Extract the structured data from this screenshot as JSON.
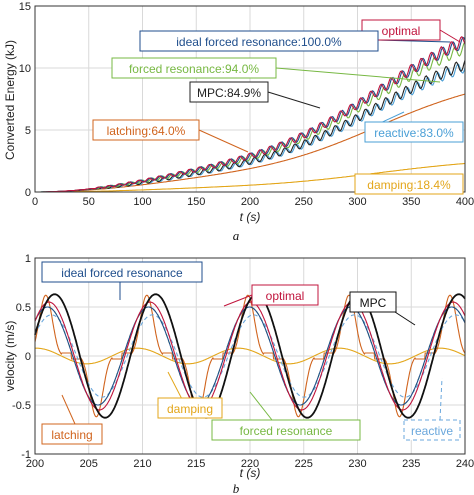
{
  "chart_data": [
    {
      "type": "line",
      "panel_label": "a",
      "xlabel": "t (s)",
      "ylabel": "Converted Energy (kJ)",
      "xlim": [
        0,
        400
      ],
      "ylim": [
        0,
        15
      ],
      "xticks": [
        0,
        50,
        100,
        150,
        200,
        250,
        300,
        350,
        400
      ],
      "yticks": [
        0,
        5,
        10,
        15
      ],
      "grid": true,
      "series": [
        {
          "name": "optimal",
          "color": "#c0143c",
          "final_value": 12.2,
          "oscillating": true
        },
        {
          "name": "ideal forced resonance",
          "color": "#1f4e8c",
          "final_value": 12.1,
          "oscillating": true
        },
        {
          "name": "forced resonance",
          "color": "#77b843",
          "final_value": 11.6,
          "oscillating": true
        },
        {
          "name": "MPC",
          "color": "#222222",
          "final_value": 10.3,
          "oscillating": true
        },
        {
          "name": "reactive",
          "color": "#4a9fd6",
          "final_value": 10.1,
          "oscillating": true
        },
        {
          "name": "latching",
          "color": "#d0641e",
          "final_value": 7.9,
          "oscillating": false
        },
        {
          "name": "damping",
          "color": "#e3a61a",
          "final_value": 2.3,
          "oscillating": false
        }
      ],
      "annotations": [
        {
          "text": "optimal",
          "color": "#c0143c"
        },
        {
          "text": "ideal forced resonance:100.0%",
          "color": "#1f4e8c"
        },
        {
          "text": "forced resonance:94.0%",
          "color": "#77b843"
        },
        {
          "text": "MPC:84.9%",
          "color": "#222222"
        },
        {
          "text": "latching:64.0%",
          "color": "#d0641e"
        },
        {
          "text": "reactive:83.0%",
          "color": "#4a9fd6"
        },
        {
          "text": "damping:18.4%",
          "color": "#e3a61a"
        }
      ]
    },
    {
      "type": "line",
      "panel_label": "b",
      "xlabel": "t (s)",
      "ylabel": "velocity (m/s)",
      "xlim": [
        200,
        240
      ],
      "ylim": [
        -1,
        1
      ],
      "xticks": [
        200,
        205,
        210,
        215,
        220,
        225,
        230,
        235,
        240
      ],
      "yticks": [
        -1,
        -0.5,
        0,
        0.5,
        1
      ],
      "grid": true,
      "series": [
        {
          "name": "MPC",
          "color": "#111111",
          "amplitude": 0.63,
          "period_s": 9.4
        },
        {
          "name": "optimal",
          "color": "#c0143c",
          "amplitude": 0.55,
          "period_s": 9.4
        },
        {
          "name": "ideal forced resonance",
          "color": "#1f4e8c",
          "amplitude": 0.5,
          "period_s": 9.4
        },
        {
          "name": "forced resonance",
          "color": "#77b843",
          "amplitude": 0.5,
          "period_s": 9.4
        },
        {
          "name": "reactive",
          "color": "#6aa7dc",
          "amplitude": 0.42,
          "period_s": 9.4
        },
        {
          "name": "latching",
          "color": "#d0641e",
          "amplitude": 0.62,
          "period_s": 9.4
        },
        {
          "name": "damping",
          "color": "#e3a61a",
          "amplitude": 0.08,
          "period_s": 9.4
        }
      ],
      "annotations": [
        {
          "text": "ideal forced resonance",
          "color": "#1f4e8c"
        },
        {
          "text": "optimal",
          "color": "#c0143c"
        },
        {
          "text": "MPC",
          "color": "#111111"
        },
        {
          "text": "damping",
          "color": "#e3a61a"
        },
        {
          "text": "latching",
          "color": "#d0641e"
        },
        {
          "text": "forced resonance",
          "color": "#77b843"
        },
        {
          "text": "reactive",
          "color": "#6aa7dc"
        }
      ]
    }
  ]
}
